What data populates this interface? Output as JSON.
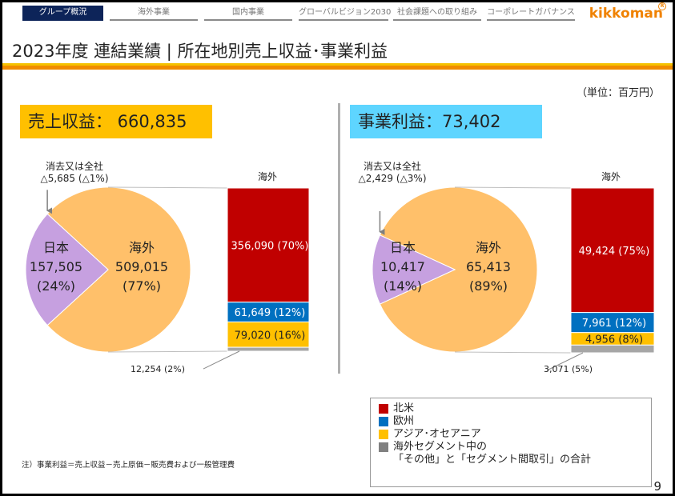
{
  "nav": {
    "items": [
      {
        "label": "グループ概況",
        "active": true
      },
      {
        "label": "海外事業",
        "active": false
      },
      {
        "label": "国内事業",
        "active": false
      },
      {
        "label": "グローバルビジョン2030",
        "active": false
      },
      {
        "label": "社会課題への取り組み",
        "active": false
      },
      {
        "label": "コーポレートガバナンス",
        "active": false
      }
    ],
    "logo": "kikkoman",
    "logo_mark": "R"
  },
  "header": {
    "title": "2023年度 連結業績 | 所在地別売上収益･事業利益",
    "unit": "（単位：百万円）"
  },
  "colors": {
    "japan": "#c6a0e0",
    "overseas": "#ffc06a",
    "north_america": "#c00000",
    "europe": "#0070c0",
    "asia_oceania": "#ffc000",
    "other": "#a6a6a6",
    "sales_badge": "#ffc000",
    "profit_badge": "#5ed5ff",
    "accent": "#f08200"
  },
  "chart_data": [
    {
      "type": "pie",
      "title": "売上収益： 660,835",
      "total": 660835,
      "slices": [
        {
          "name": "日本",
          "value": 157505,
          "percent": "24%",
          "label_value": "157,505",
          "label_pct": "(24%)"
        },
        {
          "name": "海外",
          "value": 509015,
          "percent": "77%",
          "label_value": "509,015",
          "label_pct": "(77%)"
        }
      ],
      "elimination": {
        "name": "消去又は全社",
        "value": -5685,
        "label": "△5,685  (△1%)"
      },
      "breakdown": {
        "title": "海外",
        "type": "stacked-bar",
        "segments": [
          {
            "name": "北米",
            "value": 356090,
            "percent": 70,
            "label": "356,090 (70%)"
          },
          {
            "name": "欧州",
            "value": 61649,
            "percent": 12,
            "label": "61,649 (12%)"
          },
          {
            "name": "アジア・オセアニア",
            "value": 79020,
            "percent": 16,
            "label": "79,020 (16%)"
          },
          {
            "name": "その他・セグメント間取引",
            "value": 12254,
            "percent": 2,
            "label": "12,254 (2%)"
          }
        ]
      }
    },
    {
      "type": "pie",
      "title": "事業利益：73,402",
      "total": 73402,
      "slices": [
        {
          "name": "日本",
          "value": 10417,
          "percent": "14%",
          "label_value": "10,417",
          "label_pct": "(14%)"
        },
        {
          "name": "海外",
          "value": 65413,
          "percent": "89%",
          "label_value": "65,413",
          "label_pct": "(89%)"
        }
      ],
      "elimination": {
        "name": "消去又は全社",
        "value": -2429,
        "label": "△2,429 (△3%)"
      },
      "breakdown": {
        "title": "海外",
        "type": "stacked-bar",
        "segments": [
          {
            "name": "北米",
            "value": 49424,
            "percent": 75,
            "label": "49,424 (75%)"
          },
          {
            "name": "欧州",
            "value": 7961,
            "percent": 12,
            "label": "7,961 (12%)"
          },
          {
            "name": "アジア・オセアニア",
            "value": 4956,
            "percent": 8,
            "label": "4,956 (8%)"
          },
          {
            "name": "その他・セグメント間取引",
            "value": 3071,
            "percent": 5,
            "label": "3,071 (5%)"
          }
        ]
      }
    }
  ],
  "legend": {
    "items": [
      {
        "label": "北米",
        "color": "#c00000"
      },
      {
        "label": "欧州",
        "color": "#0070c0"
      },
      {
        "label": "アジア･オセアニア",
        "color": "#ffc000"
      },
      {
        "label": "海外セグメント中の",
        "color": "#808080"
      }
    ],
    "sub_label": "「その他」と「セグメント間取引」の合計"
  },
  "footer": {
    "note": "注）事業利益＝売上収益－売上原価－販売費および一般管理費",
    "page_number": "9"
  }
}
